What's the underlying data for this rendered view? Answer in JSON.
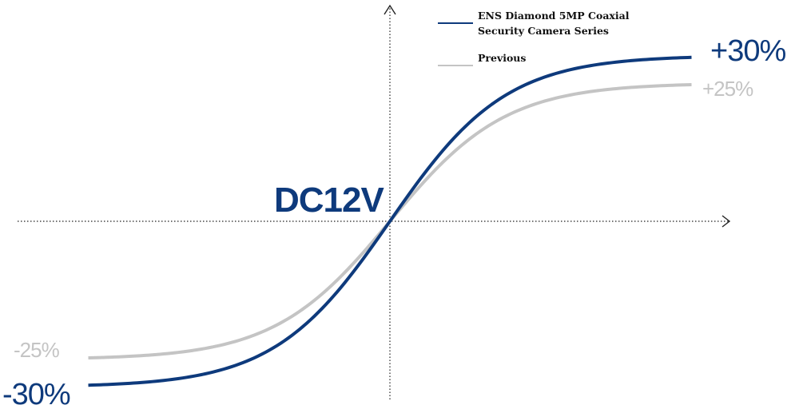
{
  "chart_data": {
    "type": "line",
    "title": "",
    "xlabel": "",
    "ylabel": "",
    "center_label": "DC12V",
    "series": [
      {
        "name": "ENS Diamond 5MP Coaxial Security Camera Series",
        "legend_lines": [
          "ENS Diamond 5MP Coaxial",
          "Security Camera Series"
        ],
        "color": "#0e3a7c",
        "min_label": "-30%",
        "max_label": "+30%",
        "min_value": -30,
        "max_value": 30
      },
      {
        "name": "Previous",
        "legend_lines": [
          "Previous"
        ],
        "color": "#c4c4c4",
        "min_label": "-25%",
        "max_label": "+25%",
        "min_value": -25,
        "max_value": 25
      }
    ],
    "grid": false,
    "legend": "top-center"
  }
}
